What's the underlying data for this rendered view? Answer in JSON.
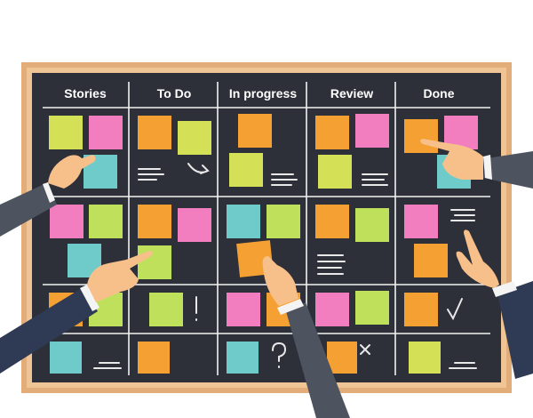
{
  "board": {
    "columns": [
      "Stories",
      "To Do",
      "In progress",
      "Review",
      "Done"
    ]
  }
}
